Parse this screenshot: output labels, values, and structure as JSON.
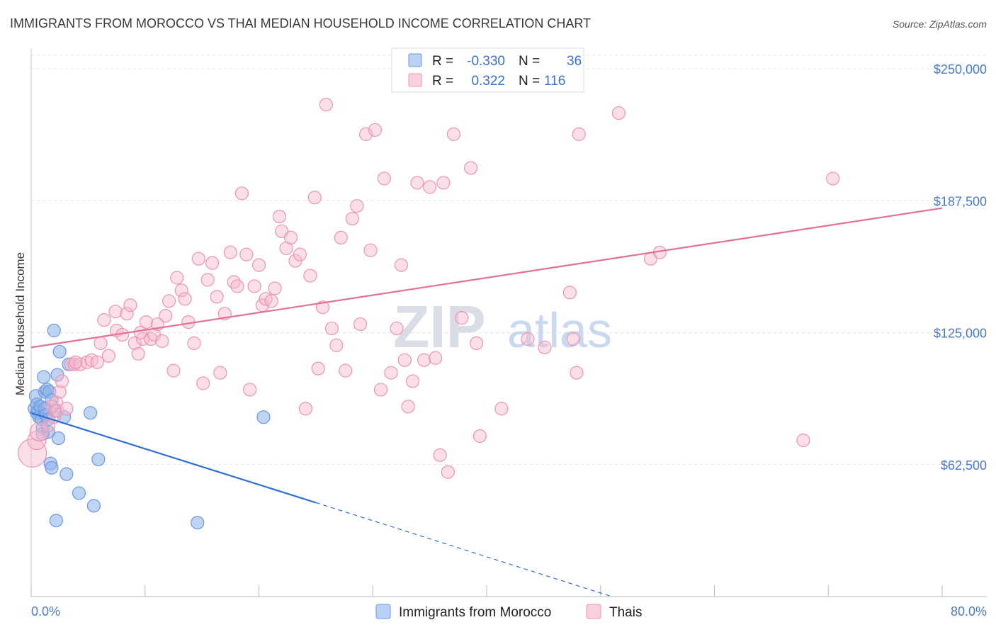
{
  "chart_data": {
    "type": "scatter",
    "title": "IMMIGRANTS FROM MOROCCO VS THAI MEDIAN HOUSEHOLD INCOME CORRELATION CHART",
    "source": "Source: ZipAtlas.com",
    "ylabel": "Median Household Income",
    "xlim": [
      0,
      80
    ],
    "ylim": [
      0,
      262500
    ],
    "x_tick_labels": {
      "left": "0.0%",
      "right": "80.0%"
    },
    "y_ticks": [
      {
        "value": 62500,
        "label": "$62,500"
      },
      {
        "value": 125000,
        "label": "$125,000"
      },
      {
        "value": 187500,
        "label": "$187,500"
      },
      {
        "value": 250000,
        "label": "$250,000"
      }
    ],
    "watermark": {
      "zip": "ZIP",
      "atlas": "atlas"
    },
    "legend_stats": [
      {
        "r_label": "R =",
        "r": "-0.330",
        "n_label": "N =",
        "n": "36"
      },
      {
        "r_label": "R =",
        "r": "0.322",
        "n_label": "N =",
        "n": "116"
      }
    ],
    "series": [
      {
        "name": "Immigrants from Morocco",
        "color": "#8ab1ea",
        "stroke": "#6b98df",
        "trend_color": "#2f6fd3",
        "trend": {
          "x0": 0,
          "y0": 87000,
          "x1": 25,
          "y1": 44500,
          "x_dash_end": 51,
          "y_dash_end": 0
        },
        "points": [
          [
            0.3,
            89000
          ],
          [
            0.4,
            95000
          ],
          [
            0.5,
            91000
          ],
          [
            0.5,
            87000
          ],
          [
            0.6,
            88000
          ],
          [
            0.7,
            85000
          ],
          [
            0.8,
            90000
          ],
          [
            0.9,
            84000
          ],
          [
            1.0,
            80000
          ],
          [
            1.0,
            77000
          ],
          [
            1.1,
            104000
          ],
          [
            1.2,
            97000
          ],
          [
            1.2,
            89000
          ],
          [
            1.3,
            86000
          ],
          [
            1.4,
            98000
          ],
          [
            1.5,
            78000
          ],
          [
            1.5,
            84000
          ],
          [
            1.6,
            97000
          ],
          [
            1.7,
            63000
          ],
          [
            1.8,
            61000
          ],
          [
            1.8,
            93000
          ],
          [
            2.0,
            126000
          ],
          [
            2.1,
            88000
          ],
          [
            2.2,
            36000
          ],
          [
            2.3,
            105000
          ],
          [
            2.4,
            75000
          ],
          [
            2.5,
            116000
          ],
          [
            2.9,
            85000
          ],
          [
            3.1,
            58000
          ],
          [
            3.3,
            110000
          ],
          [
            4.2,
            49000
          ],
          [
            5.2,
            87000
          ],
          [
            5.5,
            43000
          ],
          [
            5.9,
            65000
          ],
          [
            14.6,
            35000
          ],
          [
            20.4,
            85000
          ]
        ]
      },
      {
        "name": "Thais",
        "color": "#f6b9cd",
        "stroke": "#ec94b2",
        "trend_color": "#e3709a",
        "trend": {
          "x0": 0,
          "y0": 118000,
          "x1": 80,
          "y1": 184000
        },
        "points": [
          [
            0.1,
            68000
          ],
          [
            0.5,
            74000
          ],
          [
            0.7,
            78000
          ],
          [
            1.5,
            81000
          ],
          [
            2.0,
            85000
          ],
          [
            2.2,
            92000
          ],
          [
            2.3,
            88000
          ],
          [
            2.5,
            97000
          ],
          [
            2.7,
            102000
          ],
          [
            3.1,
            89000
          ],
          [
            3.5,
            110000
          ],
          [
            3.8,
            110000
          ],
          [
            4.3,
            110000
          ],
          [
            4.9,
            111000
          ],
          [
            5.3,
            112000
          ],
          [
            5.8,
            111000
          ],
          [
            6.1,
            120000
          ],
          [
            6.4,
            131000
          ],
          [
            6.8,
            114000
          ],
          [
            7.4,
            135000
          ],
          [
            7.5,
            126000
          ],
          [
            8.0,
            124000
          ],
          [
            8.4,
            134000
          ],
          [
            8.7,
            138000
          ],
          [
            9.1,
            120000
          ],
          [
            9.4,
            115000
          ],
          [
            9.8,
            122000
          ],
          [
            10.1,
            130000
          ],
          [
            10.5,
            122000
          ],
          [
            10.8,
            124000
          ],
          [
            11.1,
            129000
          ],
          [
            11.5,
            121000
          ],
          [
            11.8,
            133000
          ],
          [
            12.1,
            140000
          ],
          [
            12.5,
            107000
          ],
          [
            12.8,
            151000
          ],
          [
            13.2,
            145000
          ],
          [
            13.5,
            141000
          ],
          [
            13.8,
            130000
          ],
          [
            14.3,
            120000
          ],
          [
            14.7,
            160000
          ],
          [
            15.1,
            101000
          ],
          [
            15.5,
            150000
          ],
          [
            15.9,
            158000
          ],
          [
            16.3,
            142000
          ],
          [
            16.6,
            106000
          ],
          [
            17.0,
            134000
          ],
          [
            17.5,
            163000
          ],
          [
            17.8,
            149000
          ],
          [
            18.1,
            147000
          ],
          [
            18.5,
            191000
          ],
          [
            18.9,
            162000
          ],
          [
            19.2,
            98000
          ],
          [
            19.6,
            147000
          ],
          [
            20.0,
            157000
          ],
          [
            20.3,
            138000
          ],
          [
            20.6,
            141000
          ],
          [
            21.1,
            140000
          ],
          [
            21.4,
            146000
          ],
          [
            21.8,
            180000
          ],
          [
            22.0,
            173000
          ],
          [
            22.4,
            165000
          ],
          [
            22.8,
            170000
          ],
          [
            23.2,
            159000
          ],
          [
            23.6,
            162000
          ],
          [
            24.1,
            89000
          ],
          [
            24.5,
            152000
          ],
          [
            24.9,
            189000
          ],
          [
            25.2,
            108000
          ],
          [
            25.6,
            137000
          ],
          [
            25.9,
            233000
          ],
          [
            26.4,
            127000
          ],
          [
            26.8,
            119000
          ],
          [
            27.2,
            170000
          ],
          [
            27.6,
            107000
          ],
          [
            28.2,
            179000
          ],
          [
            28.6,
            185000
          ],
          [
            28.9,
            129000
          ],
          [
            29.4,
            219000
          ],
          [
            29.8,
            164000
          ],
          [
            30.2,
            221000
          ],
          [
            30.7,
            98000
          ],
          [
            31.0,
            198000
          ],
          [
            31.6,
            106000
          ],
          [
            32.1,
            127000
          ],
          [
            32.5,
            157000
          ],
          [
            32.8,
            112000
          ],
          [
            33.1,
            90000
          ],
          [
            33.5,
            102000
          ],
          [
            33.9,
            196000
          ],
          [
            34.5,
            112000
          ],
          [
            35.0,
            194000
          ],
          [
            35.5,
            113000
          ],
          [
            35.9,
            67000
          ],
          [
            36.2,
            196000
          ],
          [
            36.6,
            59000
          ],
          [
            37.1,
            219000
          ],
          [
            37.8,
            132000
          ],
          [
            38.6,
            203000
          ],
          [
            39.1,
            120000
          ],
          [
            39.4,
            76000
          ],
          [
            41.3,
            89000
          ],
          [
            43.6,
            122000
          ],
          [
            45.1,
            118000
          ],
          [
            47.3,
            144000
          ],
          [
            47.6,
            122000
          ],
          [
            47.9,
            106000
          ],
          [
            48.1,
            219000
          ],
          [
            51.6,
            229000
          ],
          [
            54.4,
            160000
          ],
          [
            55.2,
            163000
          ],
          [
            67.8,
            74000
          ],
          [
            70.4,
            198000
          ],
          [
            1.8,
            90000
          ],
          [
            3.9,
            111000
          ],
          [
            9.6,
            125000
          ]
        ]
      }
    ]
  }
}
